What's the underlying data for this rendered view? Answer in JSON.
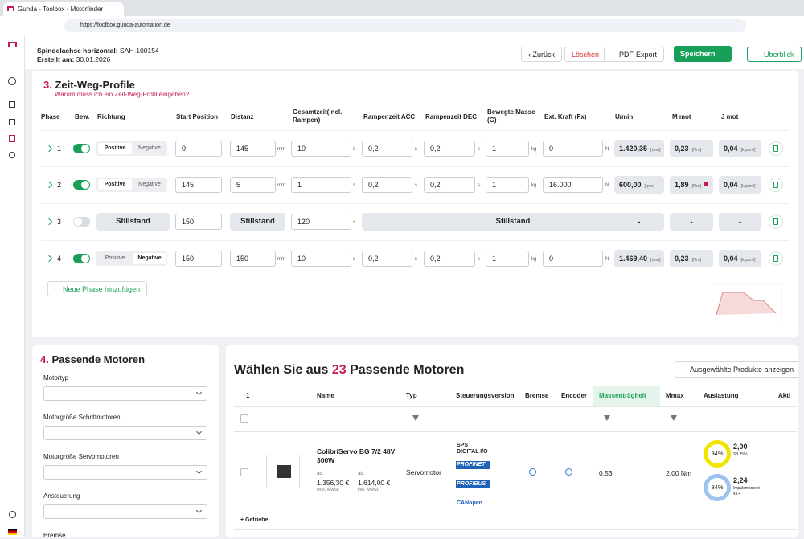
{
  "browser": {
    "tab_title": "Gunda - Toolbox - Motorfinder",
    "url": "https://toolbox.gunda-automation.de"
  },
  "header": {
    "axis_label": "Spindelachse horizontal:",
    "axis_value": "SAH-100154",
    "date_label": "Erstellt am:",
    "date_value": "30.01.2026"
  },
  "buttons": {
    "back": "Zurück",
    "delete": "Löschen",
    "pdf": "PDF-Export",
    "save": "Speichern",
    "overview": "Überblick"
  },
  "profiles": {
    "number": "3.",
    "title": "Zeit-Weg-Profile",
    "help": "Warum muss ich ein Zeit-Weg-Profil eingeben?",
    "columns": [
      "Phase",
      "Bew.",
      "Richtung",
      "Start Position",
      "Distanz",
      "Gesamtzeit(incl. Rampen)",
      "Rampenzeit ACC",
      "Rampenzeit DEC",
      "Bewegte Masse (G)",
      "Ext. Kraft (Fx)",
      "U/min",
      "M mot",
      "J mot"
    ],
    "units": {
      "distance": "mm",
      "time": "s",
      "mass": "kg",
      "force": "N",
      "rpm": "[rpm]",
      "torque": "[Nm]",
      "inertia": "[kgcm²]"
    },
    "rows": [
      {
        "phase": "1",
        "active": true,
        "direction": {
          "options": [
            "Positive",
            "Negative"
          ],
          "selected": 0
        },
        "start": "0",
        "distance": "145",
        "total_time": "10",
        "acc": "0,2",
        "dec": "0,2",
        "mass": "1",
        "force": "0",
        "rpm": "1.420,35",
        "torque": "0,23",
        "flag": false,
        "inertia": "0,04"
      },
      {
        "phase": "2",
        "active": true,
        "direction": {
          "options": [
            "Positive",
            "Negative"
          ],
          "selected": 0
        },
        "start": "145",
        "distance": "5",
        "total_time": "1",
        "acc": "0,2",
        "dec": "0,2",
        "mass": "1",
        "force": "16.000",
        "rpm": "600,00",
        "torque": "1,89",
        "flag": true,
        "inertia": "0,04"
      },
      {
        "phase": "3",
        "active": false,
        "direction_label": "Stillstand",
        "start": "150",
        "distance_label": "Stillstand",
        "total_time": "120",
        "ramp_label": "Stillstand",
        "rpm": "-",
        "torque": "-",
        "inertia": "-"
      },
      {
        "phase": "4",
        "active": true,
        "direction": {
          "options": [
            "Positive",
            "Negative"
          ],
          "selected": 1
        },
        "start": "150",
        "distance": "150",
        "total_time": "10",
        "acc": "0,2",
        "dec": "0,2",
        "mass": "1",
        "force": "0",
        "rpm": "1.469,40",
        "torque": "0,23",
        "flag": false,
        "inertia": "0,04"
      }
    ],
    "add_phase": "Neue Phase hinzufügen"
  },
  "motors": {
    "number": "4.",
    "title": "Passende Motoren",
    "filters": [
      "Motortyp",
      "Motorgröße Schrittmotoren",
      "Motorgröße Servomotoren",
      "Ansteuerung",
      "Bremse"
    ]
  },
  "results": {
    "heading_prefix": "Wählen Sie aus",
    "count": "23",
    "heading_suffix": "Passende Motoren",
    "show_selected": "Ausgewählte Produkte anzeigen",
    "columns": [
      "1",
      "Name",
      "Typ",
      "Steuerungsversion",
      "Bremse",
      "Encoder",
      "Massenträgheit",
      "Mmax",
      "Auslastung",
      "Akti"
    ],
    "product": {
      "name": "ColibriServo BG 7/2 48V 300W",
      "price_net_prefix": "ab:",
      "price_net": "1.356,30 €",
      "price_net_note": "exkl. MwSt.",
      "price_gross_prefix": "ab:",
      "price_gross": "1.614,00 €",
      "price_gross_note": "inkl. MwSt.",
      "type": "Servomotor",
      "controls": [
        "SPS DIGITAL I/O",
        "PROFINET",
        "PROFIBUS",
        "CANopen"
      ],
      "inertia": "0.53",
      "mmax": "2,00 Nm",
      "load": [
        {
          "percent": "94%",
          "value": "2,00",
          "note": "S3 25%",
          "color": "#f2e300"
        },
        {
          "percent": "84%",
          "value": "2,24",
          "note": "Impulsmoment x3.4",
          "color": "#9fc3ef"
        }
      ]
    },
    "gearbox": "+ Getriebe"
  }
}
